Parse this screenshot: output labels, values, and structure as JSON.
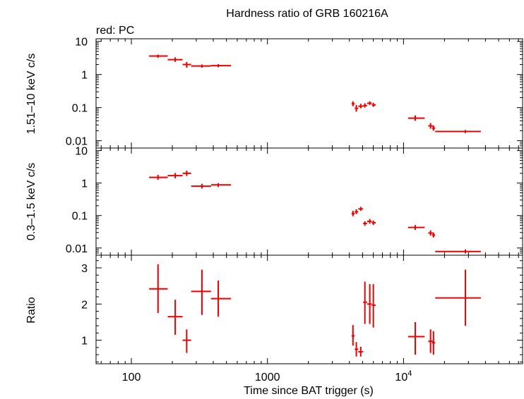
{
  "chart_data": {
    "type": "scatter",
    "title": "Hardness ratio of GRB 160216A",
    "legend_note": "red: PC",
    "xlabel": "Time since BAT trigger (s)",
    "x_scale": "log",
    "xlim": [
      55,
      75000
    ],
    "x_ticks": [
      {
        "value": 100,
        "label": "100"
      },
      {
        "value": 1000,
        "label": "1000"
      },
      {
        "value": 10000,
        "label": "10",
        "sup": "4"
      }
    ],
    "series_color": "#ee0000",
    "panels": [
      {
        "name": "hard",
        "ylabel": "1.51–10 keV c/s",
        "y_scale": "log",
        "ylim": [
          0.006,
          12
        ],
        "y_ticks": [
          {
            "value": 10,
            "label": "10"
          },
          {
            "value": 1,
            "label": "1"
          },
          {
            "value": 0.1,
            "label": "0.1"
          },
          {
            "value": 0.01,
            "label": "0.01"
          }
        ],
        "points": [
          {
            "x": 157,
            "xlo": 135,
            "xhi": 185,
            "y": 3.6,
            "ylo": 3.2,
            "yhi": 4.0
          },
          {
            "x": 210,
            "xlo": 185,
            "xhi": 238,
            "y": 2.8,
            "ylo": 2.4,
            "yhi": 3.3
          },
          {
            "x": 255,
            "xlo": 238,
            "xhi": 275,
            "y": 2.0,
            "ylo": 1.6,
            "yhi": 2.4
          },
          {
            "x": 330,
            "xlo": 275,
            "xhi": 385,
            "y": 1.8,
            "ylo": 1.6,
            "yhi": 2.0
          },
          {
            "x": 435,
            "xlo": 385,
            "xhi": 540,
            "y": 1.85,
            "ylo": 1.65,
            "yhi": 2.05
          },
          {
            "x": 4250,
            "xlo": 4150,
            "xhi": 4380,
            "y": 0.13,
            "ylo": 0.11,
            "yhi": 0.155
          },
          {
            "x": 4500,
            "xlo": 4380,
            "xhi": 4650,
            "y": 0.095,
            "ylo": 0.075,
            "yhi": 0.12
          },
          {
            "x": 4850,
            "xlo": 4650,
            "xhi": 5050,
            "y": 0.11,
            "ylo": 0.095,
            "yhi": 0.13
          },
          {
            "x": 5200,
            "xlo": 5050,
            "xhi": 5400,
            "y": 0.115,
            "ylo": 0.1,
            "yhi": 0.135
          },
          {
            "x": 5650,
            "xlo": 5400,
            "xhi": 5850,
            "y": 0.135,
            "ylo": 0.12,
            "yhi": 0.155
          },
          {
            "x": 6000,
            "xlo": 5850,
            "xhi": 6250,
            "y": 0.12,
            "ylo": 0.105,
            "yhi": 0.14
          },
          {
            "x": 12200,
            "xlo": 10800,
            "xhi": 14300,
            "y": 0.048,
            "ylo": 0.04,
            "yhi": 0.058
          },
          {
            "x": 15800,
            "xlo": 15200,
            "xhi": 16400,
            "y": 0.028,
            "ylo": 0.023,
            "yhi": 0.034
          },
          {
            "x": 16600,
            "xlo": 16200,
            "xhi": 17100,
            "y": 0.024,
            "ylo": 0.02,
            "yhi": 0.029
          },
          {
            "x": 28500,
            "xlo": 17100,
            "xhi": 37000,
            "y": 0.019,
            "ylo": 0.017,
            "yhi": 0.021
          }
        ]
      },
      {
        "name": "soft",
        "ylabel": "0.3–1.5 keV c/s",
        "y_scale": "log",
        "ylim": [
          0.006,
          12
        ],
        "y_ticks": [
          {
            "value": 10,
            "label": "10"
          },
          {
            "value": 1,
            "label": "1"
          },
          {
            "value": 0.1,
            "label": "0.1"
          },
          {
            "value": 0.01,
            "label": "0.01"
          }
        ],
        "points": [
          {
            "x": 157,
            "xlo": 135,
            "xhi": 185,
            "y": 1.5,
            "ylo": 1.25,
            "yhi": 1.8
          },
          {
            "x": 210,
            "xlo": 185,
            "xhi": 238,
            "y": 1.7,
            "ylo": 1.4,
            "yhi": 2.05
          },
          {
            "x": 255,
            "xlo": 238,
            "xhi": 275,
            "y": 2.0,
            "ylo": 1.65,
            "yhi": 2.4
          },
          {
            "x": 330,
            "xlo": 275,
            "xhi": 385,
            "y": 0.8,
            "ylo": 0.68,
            "yhi": 0.95
          },
          {
            "x": 435,
            "xlo": 385,
            "xhi": 540,
            "y": 0.88,
            "ylo": 0.76,
            "yhi": 1.0
          },
          {
            "x": 4250,
            "xlo": 4150,
            "xhi": 4380,
            "y": 0.115,
            "ylo": 0.095,
            "yhi": 0.14
          },
          {
            "x": 4500,
            "xlo": 4380,
            "xhi": 4650,
            "y": 0.13,
            "ylo": 0.11,
            "yhi": 0.155
          },
          {
            "x": 4850,
            "xlo": 4650,
            "xhi": 5050,
            "y": 0.16,
            "ylo": 0.14,
            "yhi": 0.185
          },
          {
            "x": 5200,
            "xlo": 5050,
            "xhi": 5400,
            "y": 0.057,
            "ylo": 0.048,
            "yhi": 0.067
          },
          {
            "x": 5650,
            "xlo": 5400,
            "xhi": 5850,
            "y": 0.066,
            "ylo": 0.056,
            "yhi": 0.078
          },
          {
            "x": 6000,
            "xlo": 5850,
            "xhi": 6250,
            "y": 0.06,
            "ylo": 0.051,
            "yhi": 0.07
          },
          {
            "x": 12200,
            "xlo": 10800,
            "xhi": 14300,
            "y": 0.043,
            "ylo": 0.036,
            "yhi": 0.051
          },
          {
            "x": 15800,
            "xlo": 15200,
            "xhi": 16400,
            "y": 0.029,
            "ylo": 0.024,
            "yhi": 0.035
          },
          {
            "x": 16600,
            "xlo": 16200,
            "xhi": 17100,
            "y": 0.025,
            "ylo": 0.021,
            "yhi": 0.03
          },
          {
            "x": 28500,
            "xlo": 17100,
            "xhi": 37000,
            "y": 0.0078,
            "ylo": 0.0068,
            "yhi": 0.009
          }
        ]
      },
      {
        "name": "ratio",
        "ylabel": "Ratio",
        "y_scale": "linear",
        "ylim": [
          0.35,
          3.35
        ],
        "y_ticks": [
          {
            "value": 3,
            "label": "3"
          },
          {
            "value": 2,
            "label": "2"
          },
          {
            "value": 1,
            "label": "1"
          }
        ],
        "points": [
          {
            "x": 157,
            "xlo": 135,
            "xhi": 185,
            "y": 2.42,
            "ylo": 1.75,
            "yhi": 3.1
          },
          {
            "x": 210,
            "xlo": 185,
            "xhi": 238,
            "y": 1.65,
            "ylo": 1.15,
            "yhi": 2.12
          },
          {
            "x": 255,
            "xlo": 238,
            "xhi": 275,
            "y": 1.0,
            "ylo": 0.65,
            "yhi": 1.3
          },
          {
            "x": 330,
            "xlo": 275,
            "xhi": 385,
            "y": 2.35,
            "ylo": 1.7,
            "yhi": 2.95
          },
          {
            "x": 435,
            "xlo": 385,
            "xhi": 540,
            "y": 2.15,
            "ylo": 1.65,
            "yhi": 2.65
          },
          {
            "x": 4250,
            "xlo": 4150,
            "xhi": 4380,
            "y": 1.12,
            "ylo": 0.85,
            "yhi": 1.42
          },
          {
            "x": 4500,
            "xlo": 4380,
            "xhi": 4650,
            "y": 0.75,
            "ylo": 0.55,
            "yhi": 0.95
          },
          {
            "x": 4850,
            "xlo": 4650,
            "xhi": 5050,
            "y": 0.68,
            "ylo": 0.55,
            "yhi": 0.82
          },
          {
            "x": 5200,
            "xlo": 5050,
            "xhi": 5400,
            "y": 2.05,
            "ylo": 1.45,
            "yhi": 2.62
          },
          {
            "x": 5650,
            "xlo": 5400,
            "xhi": 5850,
            "y": 2.0,
            "ylo": 1.45,
            "yhi": 2.55
          },
          {
            "x": 6000,
            "xlo": 5850,
            "xhi": 6250,
            "y": 1.97,
            "ylo": 1.35,
            "yhi": 2.55
          },
          {
            "x": 12200,
            "xlo": 10800,
            "xhi": 14300,
            "y": 1.1,
            "ylo": 0.6,
            "yhi": 1.5
          },
          {
            "x": 15800,
            "xlo": 15200,
            "xhi": 16400,
            "y": 0.97,
            "ylo": 0.65,
            "yhi": 1.3
          },
          {
            "x": 16600,
            "xlo": 16200,
            "xhi": 17100,
            "y": 0.93,
            "ylo": 0.6,
            "yhi": 1.25
          },
          {
            "x": 28500,
            "xlo": 17100,
            "xhi": 37000,
            "y": 2.17,
            "ylo": 1.4,
            "yhi": 2.95
          }
        ]
      }
    ]
  }
}
